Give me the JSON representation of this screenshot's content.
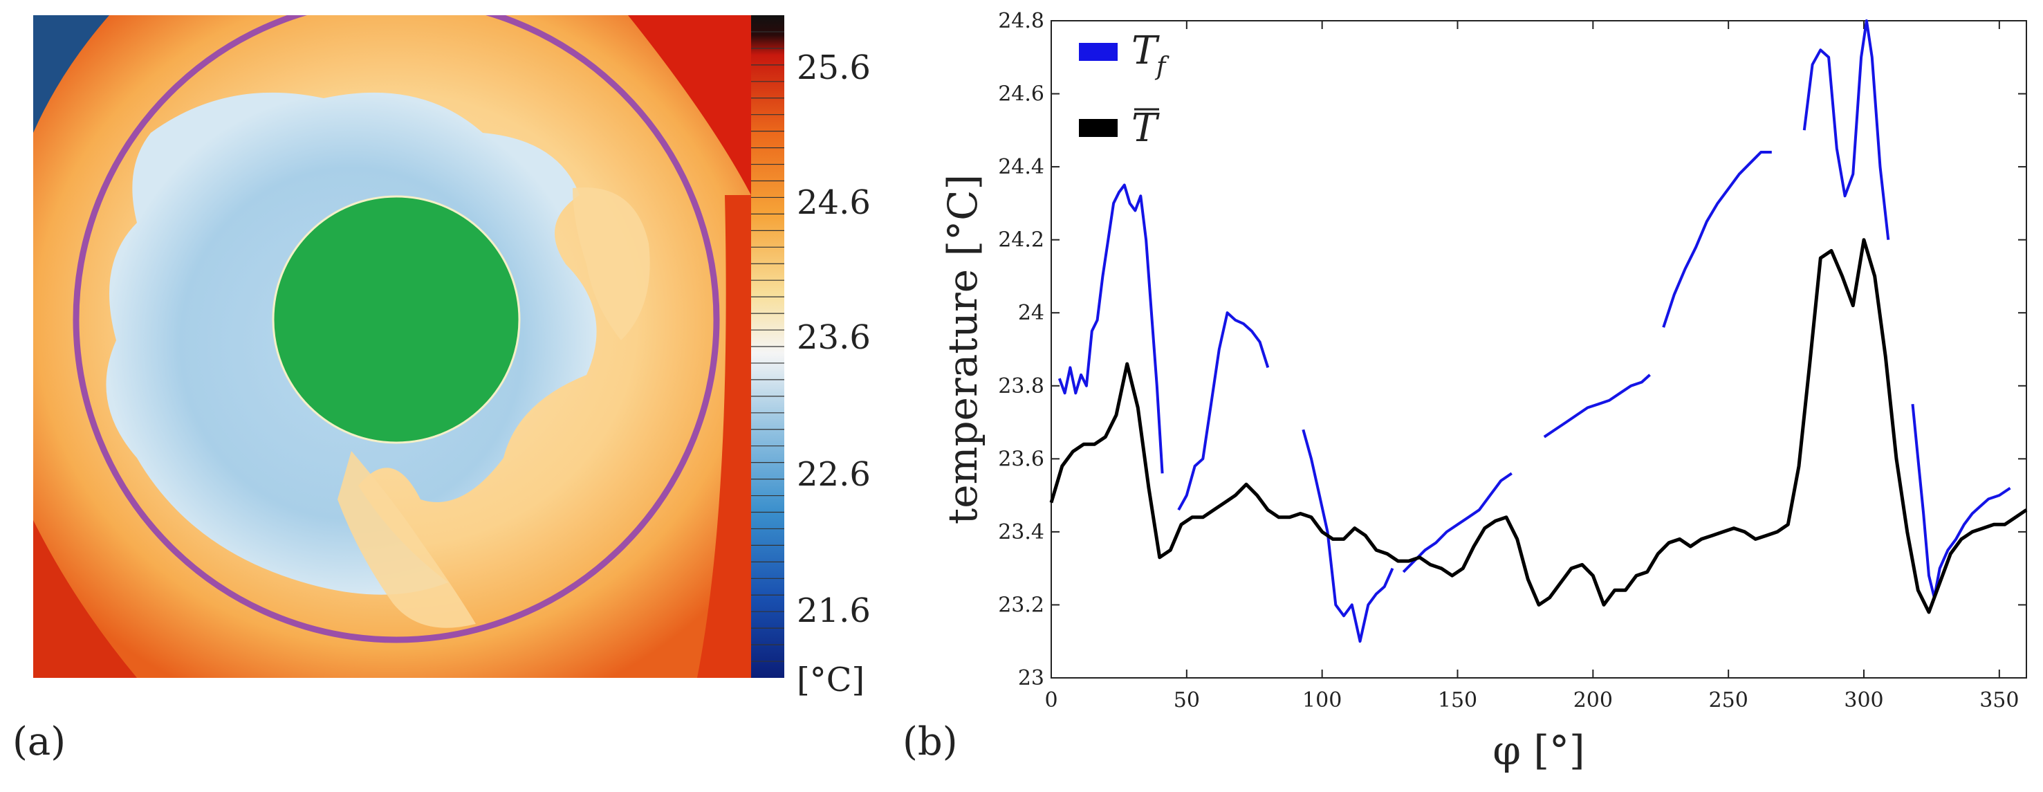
{
  "panel_a": {
    "label": "(a)",
    "colorbar": {
      "ticks": [
        "25.6",
        "24.6",
        "23.6",
        "22.6",
        "21.6"
      ],
      "unit": "[°C]",
      "range": [
        21.2,
        26.0
      ]
    },
    "colors": {
      "ring": "#9b4fa8",
      "cylinder": "#22aa48",
      "cold": "#a9cfe8",
      "warm": "#f9c77a",
      "hot": "#d8200e"
    }
  },
  "panel_b": {
    "label": "(b)"
  },
  "chart_data": {
    "type": "line",
    "xlabel": "φ [°]",
    "ylabel": "temperature [°C]",
    "xlim": [
      0,
      360
    ],
    "ylim": [
      23.0,
      24.8
    ],
    "xticks": [
      "0",
      "50",
      "100",
      "150",
      "200",
      "250",
      "300",
      "350"
    ],
    "yticks": [
      "23",
      "23.2",
      "23.4",
      "23.6",
      "23.8",
      "24",
      "24.2",
      "24.4",
      "24.6",
      "24.8"
    ],
    "legend_position": "top-left",
    "series": [
      {
        "name": "Tf",
        "legend_label": "T",
        "legend_sub": "f",
        "color": "#1414e6",
        "segments": [
          {
            "x": [
              3,
              5,
              7,
              9,
              11,
              13,
              15,
              17,
              19,
              21,
              23,
              25,
              27,
              29,
              31,
              33,
              35,
              37,
              39,
              41
            ],
            "y": [
              23.82,
              23.78,
              23.85,
              23.78,
              23.83,
              23.8,
              23.95,
              23.98,
              24.1,
              24.2,
              24.3,
              24.33,
              24.35,
              24.3,
              24.28,
              24.32,
              24.2,
              24.0,
              23.8,
              23.56
            ]
          },
          {
            "x": [
              47,
              50,
              53,
              56,
              59,
              62,
              65,
              68,
              71,
              74,
              77,
              80
            ],
            "y": [
              23.46,
              23.5,
              23.58,
              23.6,
              23.75,
              23.9,
              24.0,
              23.98,
              23.97,
              23.95,
              23.92,
              23.85
            ]
          },
          {
            "x": [
              93,
              96,
              99,
              102,
              105,
              108,
              111,
              114,
              117,
              120,
              123,
              126
            ],
            "y": [
              23.68,
              23.6,
              23.5,
              23.4,
              23.2,
              23.17,
              23.2,
              23.1,
              23.2,
              23.23,
              23.25,
              23.3
            ]
          },
          {
            "x": [
              130,
              134,
              138,
              142,
              146,
              150,
              154,
              158,
              162,
              166,
              170
            ],
            "y": [
              23.29,
              23.32,
              23.35,
              23.37,
              23.4,
              23.42,
              23.44,
              23.46,
              23.5,
              23.54,
              23.56
            ]
          },
          {
            "x": [
              182,
              186,
              190,
              194,
              198,
              202,
              206,
              210,
              214,
              218,
              221
            ],
            "y": [
              23.66,
              23.68,
              23.7,
              23.72,
              23.74,
              23.75,
              23.76,
              23.78,
              23.8,
              23.81,
              23.83
            ]
          },
          {
            "x": [
              226,
              230,
              234,
              238,
              242,
              246,
              250,
              254,
              258,
              262,
              266
            ],
            "y": [
              23.96,
              24.05,
              24.12,
              24.18,
              24.25,
              24.3,
              24.34,
              24.38,
              24.41,
              24.44,
              24.44
            ]
          },
          {
            "x": [
              278,
              281,
              284,
              287,
              290,
              293,
              296,
              299,
              301,
              303,
              306,
              309
            ],
            "y": [
              24.5,
              24.68,
              24.72,
              24.7,
              24.45,
              24.32,
              24.38,
              24.7,
              24.8,
              24.7,
              24.4,
              24.2
            ]
          },
          {
            "x": [
              318,
              320,
              322,
              324,
              326,
              328,
              331,
              334,
              337,
              340,
              343,
              346,
              350,
              354
            ],
            "y": [
              23.75,
              23.6,
              23.45,
              23.28,
              23.22,
              23.3,
              23.35,
              23.38,
              23.42,
              23.45,
              23.47,
              23.49,
              23.5,
              23.52
            ]
          }
        ]
      },
      {
        "name": "T-bar",
        "legend_label": "T",
        "color": "#000000",
        "x": [
          0,
          4,
          8,
          12,
          16,
          20,
          24,
          28,
          32,
          36,
          40,
          44,
          48,
          52,
          56,
          60,
          64,
          68,
          72,
          76,
          80,
          84,
          88,
          92,
          96,
          100,
          104,
          108,
          112,
          116,
          120,
          124,
          128,
          132,
          136,
          140,
          144,
          148,
          152,
          156,
          160,
          164,
          168,
          172,
          176,
          180,
          184,
          188,
          192,
          196,
          200,
          204,
          208,
          212,
          216,
          220,
          224,
          228,
          232,
          236,
          240,
          244,
          248,
          252,
          256,
          260,
          264,
          268,
          272,
          276,
          280,
          284,
          288,
          292,
          296,
          300,
          304,
          308,
          312,
          316,
          320,
          324,
          328,
          332,
          336,
          340,
          344,
          348,
          352,
          356,
          360
        ],
        "y": [
          23.48,
          23.58,
          23.62,
          23.64,
          23.64,
          23.66,
          23.72,
          23.86,
          23.74,
          23.52,
          23.33,
          23.35,
          23.42,
          23.44,
          23.44,
          23.46,
          23.48,
          23.5,
          23.53,
          23.5,
          23.46,
          23.44,
          23.44,
          23.45,
          23.44,
          23.4,
          23.38,
          23.38,
          23.41,
          23.39,
          23.35,
          23.34,
          23.32,
          23.32,
          23.33,
          23.31,
          23.3,
          23.28,
          23.3,
          23.36,
          23.41,
          23.43,
          23.44,
          23.38,
          23.27,
          23.2,
          23.22,
          23.26,
          23.3,
          23.31,
          23.28,
          23.2,
          23.24,
          23.24,
          23.28,
          23.29,
          23.34,
          23.37,
          23.38,
          23.36,
          23.38,
          23.39,
          23.4,
          23.41,
          23.4,
          23.38,
          23.39,
          23.4,
          23.42,
          23.58,
          23.86,
          24.15,
          24.17,
          24.1,
          24.02,
          24.2,
          24.1,
          23.88,
          23.6,
          23.4,
          23.24,
          23.18,
          23.26,
          23.34,
          23.38,
          23.4,
          23.41,
          23.42,
          23.42,
          23.44,
          23.46
        ]
      }
    ]
  }
}
